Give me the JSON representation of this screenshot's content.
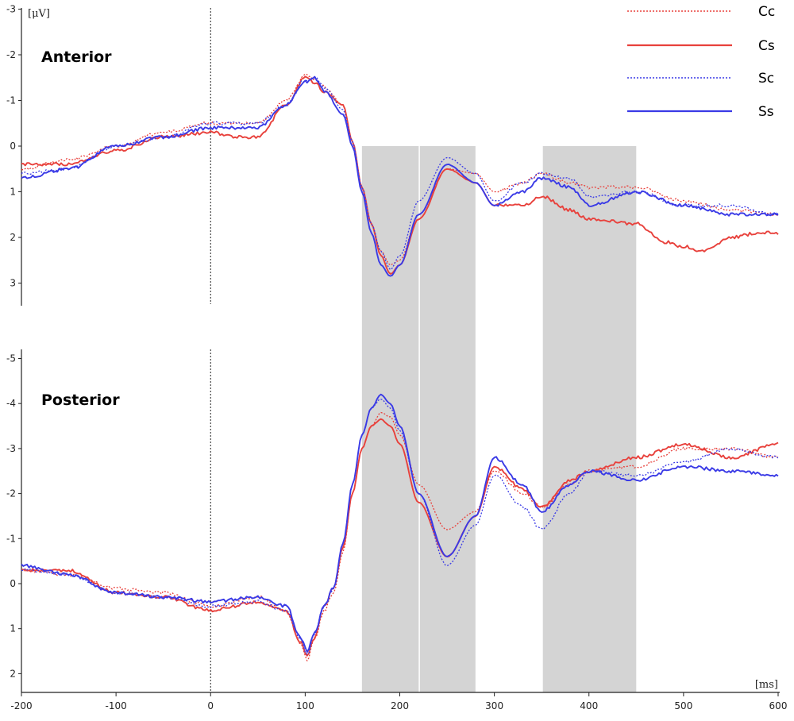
{
  "chart_data": [
    {
      "type": "line",
      "title": "Anterior",
      "unit_y": "[μV]",
      "xlim": [
        -200,
        600
      ],
      "ylim": [
        -3,
        3.5
      ],
      "y_inverted": true,
      "yticks": [
        -3,
        -2,
        -1,
        0,
        1,
        2,
        3
      ],
      "highlight_windows": [
        [
          160,
          220
        ],
        [
          220,
          280
        ],
        [
          350,
          450
        ]
      ],
      "onset_line_x": 0,
      "series": [
        {
          "name": "Cc",
          "color": "#e8413c",
          "dashed": true,
          "x": [
            -200,
            -150,
            -100,
            -50,
            0,
            50,
            80,
            100,
            110,
            120,
            140,
            150,
            160,
            170,
            180,
            190,
            200,
            220,
            250,
            280,
            300,
            330,
            350,
            380,
            400,
            450,
            500,
            550,
            600
          ],
          "y": [
            0.5,
            0.3,
            0.0,
            -0.3,
            -0.5,
            -0.5,
            -1.0,
            -1.55,
            -1.45,
            -1.3,
            -0.9,
            -0.1,
            0.9,
            1.7,
            2.3,
            2.6,
            2.5,
            1.5,
            0.5,
            0.6,
            1.0,
            0.8,
            0.6,
            0.8,
            0.9,
            0.9,
            1.2,
            1.4,
            1.5
          ]
        },
        {
          "name": "Cs",
          "color": "#e8413c",
          "dashed": false,
          "x": [
            -200,
            -150,
            -100,
            -50,
            0,
            30,
            50,
            80,
            100,
            110,
            120,
            140,
            150,
            160,
            170,
            180,
            190,
            200,
            220,
            250,
            280,
            300,
            330,
            350,
            380,
            400,
            450,
            480,
            500,
            520,
            550,
            580,
            600
          ],
          "y": [
            0.4,
            0.4,
            0.1,
            -0.2,
            -0.3,
            -0.2,
            -0.2,
            -0.9,
            -1.5,
            -1.4,
            -1.2,
            -0.9,
            -0.1,
            0.9,
            1.7,
            2.4,
            2.8,
            2.6,
            1.6,
            0.5,
            0.8,
            1.3,
            1.3,
            1.1,
            1.4,
            1.6,
            1.7,
            2.1,
            2.2,
            2.3,
            2.0,
            1.9,
            1.9
          ]
        },
        {
          "name": "Sc",
          "color": "#3a3ae6",
          "dashed": true,
          "x": [
            -200,
            -150,
            -100,
            -50,
            0,
            50,
            80,
            100,
            110,
            120,
            140,
            150,
            160,
            170,
            180,
            190,
            200,
            220,
            250,
            280,
            300,
            330,
            350,
            380,
            400,
            450,
            500,
            550,
            600
          ],
          "y": [
            0.6,
            0.5,
            0.0,
            -0.2,
            -0.5,
            -0.5,
            -0.9,
            -1.45,
            -1.5,
            -1.3,
            -0.8,
            -0.1,
            0.9,
            1.7,
            2.3,
            2.7,
            2.4,
            1.2,
            0.25,
            0.6,
            1.2,
            0.8,
            0.6,
            0.7,
            1.1,
            1.0,
            1.3,
            1.3,
            1.5
          ]
        },
        {
          "name": "Ss",
          "color": "#3a3ae6",
          "dashed": false,
          "x": [
            -200,
            -150,
            -100,
            -50,
            0,
            50,
            80,
            100,
            110,
            120,
            140,
            150,
            160,
            170,
            180,
            190,
            200,
            220,
            250,
            280,
            300,
            330,
            350,
            380,
            400,
            450,
            500,
            550,
            600
          ],
          "y": [
            0.7,
            0.5,
            0.0,
            -0.2,
            -0.4,
            -0.4,
            -0.9,
            -1.4,
            -1.5,
            -1.2,
            -0.7,
            0.0,
            1.0,
            1.9,
            2.6,
            2.85,
            2.6,
            1.5,
            0.4,
            0.8,
            1.3,
            1.0,
            0.7,
            0.9,
            1.3,
            1.0,
            1.3,
            1.5,
            1.5
          ]
        }
      ]
    },
    {
      "type": "line",
      "title": "Posterior",
      "xlim": [
        -200,
        600
      ],
      "ylim": [
        -5,
        2
      ],
      "y_inverted": true,
      "yticks": [
        -5,
        -4,
        -3,
        -2,
        -1,
        0,
        1,
        2
      ],
      "xticks": [
        -200,
        -100,
        0,
        100,
        200,
        300,
        400,
        500,
        600
      ],
      "unit_x": "[ms]",
      "highlight_windows": [
        [
          160,
          220
        ],
        [
          220,
          280
        ],
        [
          350,
          450
        ]
      ],
      "onset_line_x": 0,
      "series": [
        {
          "name": "Cc",
          "color": "#e8413c",
          "dashed": true,
          "x": [
            -200,
            -150,
            -100,
            -50,
            0,
            50,
            80,
            95,
            102,
            110,
            120,
            130,
            140,
            150,
            160,
            170,
            180,
            190,
            200,
            220,
            250,
            280,
            300,
            330,
            350,
            380,
            400,
            450,
            500,
            550,
            600
          ],
          "y": [
            -0.3,
            -0.2,
            0.1,
            0.2,
            0.5,
            0.3,
            0.6,
            1.3,
            1.7,
            1.2,
            0.6,
            0.2,
            -0.7,
            -2.0,
            -3.0,
            -3.5,
            -3.8,
            -3.7,
            -3.3,
            -2.2,
            -1.2,
            -1.6,
            -2.5,
            -2.0,
            -1.7,
            -2.2,
            -2.5,
            -2.6,
            -3.0,
            -3.0,
            -2.8
          ]
        },
        {
          "name": "Cs",
          "color": "#e8413c",
          "dashed": false,
          "x": [
            -200,
            -150,
            -100,
            -50,
            0,
            50,
            80,
            95,
            102,
            110,
            120,
            130,
            140,
            150,
            160,
            170,
            180,
            190,
            200,
            220,
            250,
            280,
            300,
            330,
            350,
            380,
            400,
            450,
            500,
            550,
            600
          ],
          "y": [
            -0.3,
            -0.3,
            0.2,
            0.3,
            0.6,
            0.4,
            0.6,
            1.3,
            1.6,
            1.2,
            0.5,
            0.1,
            -0.8,
            -2.0,
            -3.0,
            -3.5,
            -3.65,
            -3.5,
            -3.1,
            -1.8,
            -0.6,
            -1.5,
            -2.6,
            -2.1,
            -1.7,
            -2.3,
            -2.5,
            -2.8,
            -3.1,
            -2.8,
            -3.1
          ]
        },
        {
          "name": "Sc",
          "color": "#3a3ae6",
          "dashed": true,
          "x": [
            -200,
            -150,
            -100,
            -50,
            0,
            50,
            80,
            95,
            102,
            110,
            120,
            130,
            140,
            150,
            160,
            170,
            180,
            190,
            200,
            220,
            250,
            280,
            300,
            330,
            350,
            380,
            400,
            450,
            500,
            550,
            600
          ],
          "y": [
            -0.3,
            -0.2,
            0.2,
            0.3,
            0.5,
            0.4,
            0.6,
            1.2,
            1.6,
            1.1,
            0.5,
            0.1,
            -0.9,
            -2.2,
            -3.3,
            -3.9,
            -4.1,
            -3.9,
            -3.4,
            -2.0,
            -0.4,
            -1.3,
            -2.4,
            -1.7,
            -1.2,
            -2.0,
            -2.5,
            -2.4,
            -2.7,
            -3.0,
            -2.8
          ]
        },
        {
          "name": "Ss",
          "color": "#3a3ae6",
          "dashed": false,
          "x": [
            -200,
            -150,
            -100,
            -50,
            0,
            50,
            80,
            95,
            102,
            110,
            120,
            130,
            140,
            150,
            160,
            170,
            180,
            190,
            200,
            220,
            250,
            280,
            300,
            330,
            350,
            380,
            400,
            450,
            500,
            550,
            600
          ],
          "y": [
            -0.4,
            -0.2,
            0.2,
            0.3,
            0.4,
            0.3,
            0.5,
            1.2,
            1.5,
            1.1,
            0.5,
            0.1,
            -0.9,
            -2.2,
            -3.3,
            -3.9,
            -4.2,
            -4.0,
            -3.5,
            -2.0,
            -0.6,
            -1.5,
            -2.8,
            -2.2,
            -1.6,
            -2.2,
            -2.5,
            -2.3,
            -2.6,
            -2.5,
            -2.4
          ]
        }
      ]
    }
  ]
}
